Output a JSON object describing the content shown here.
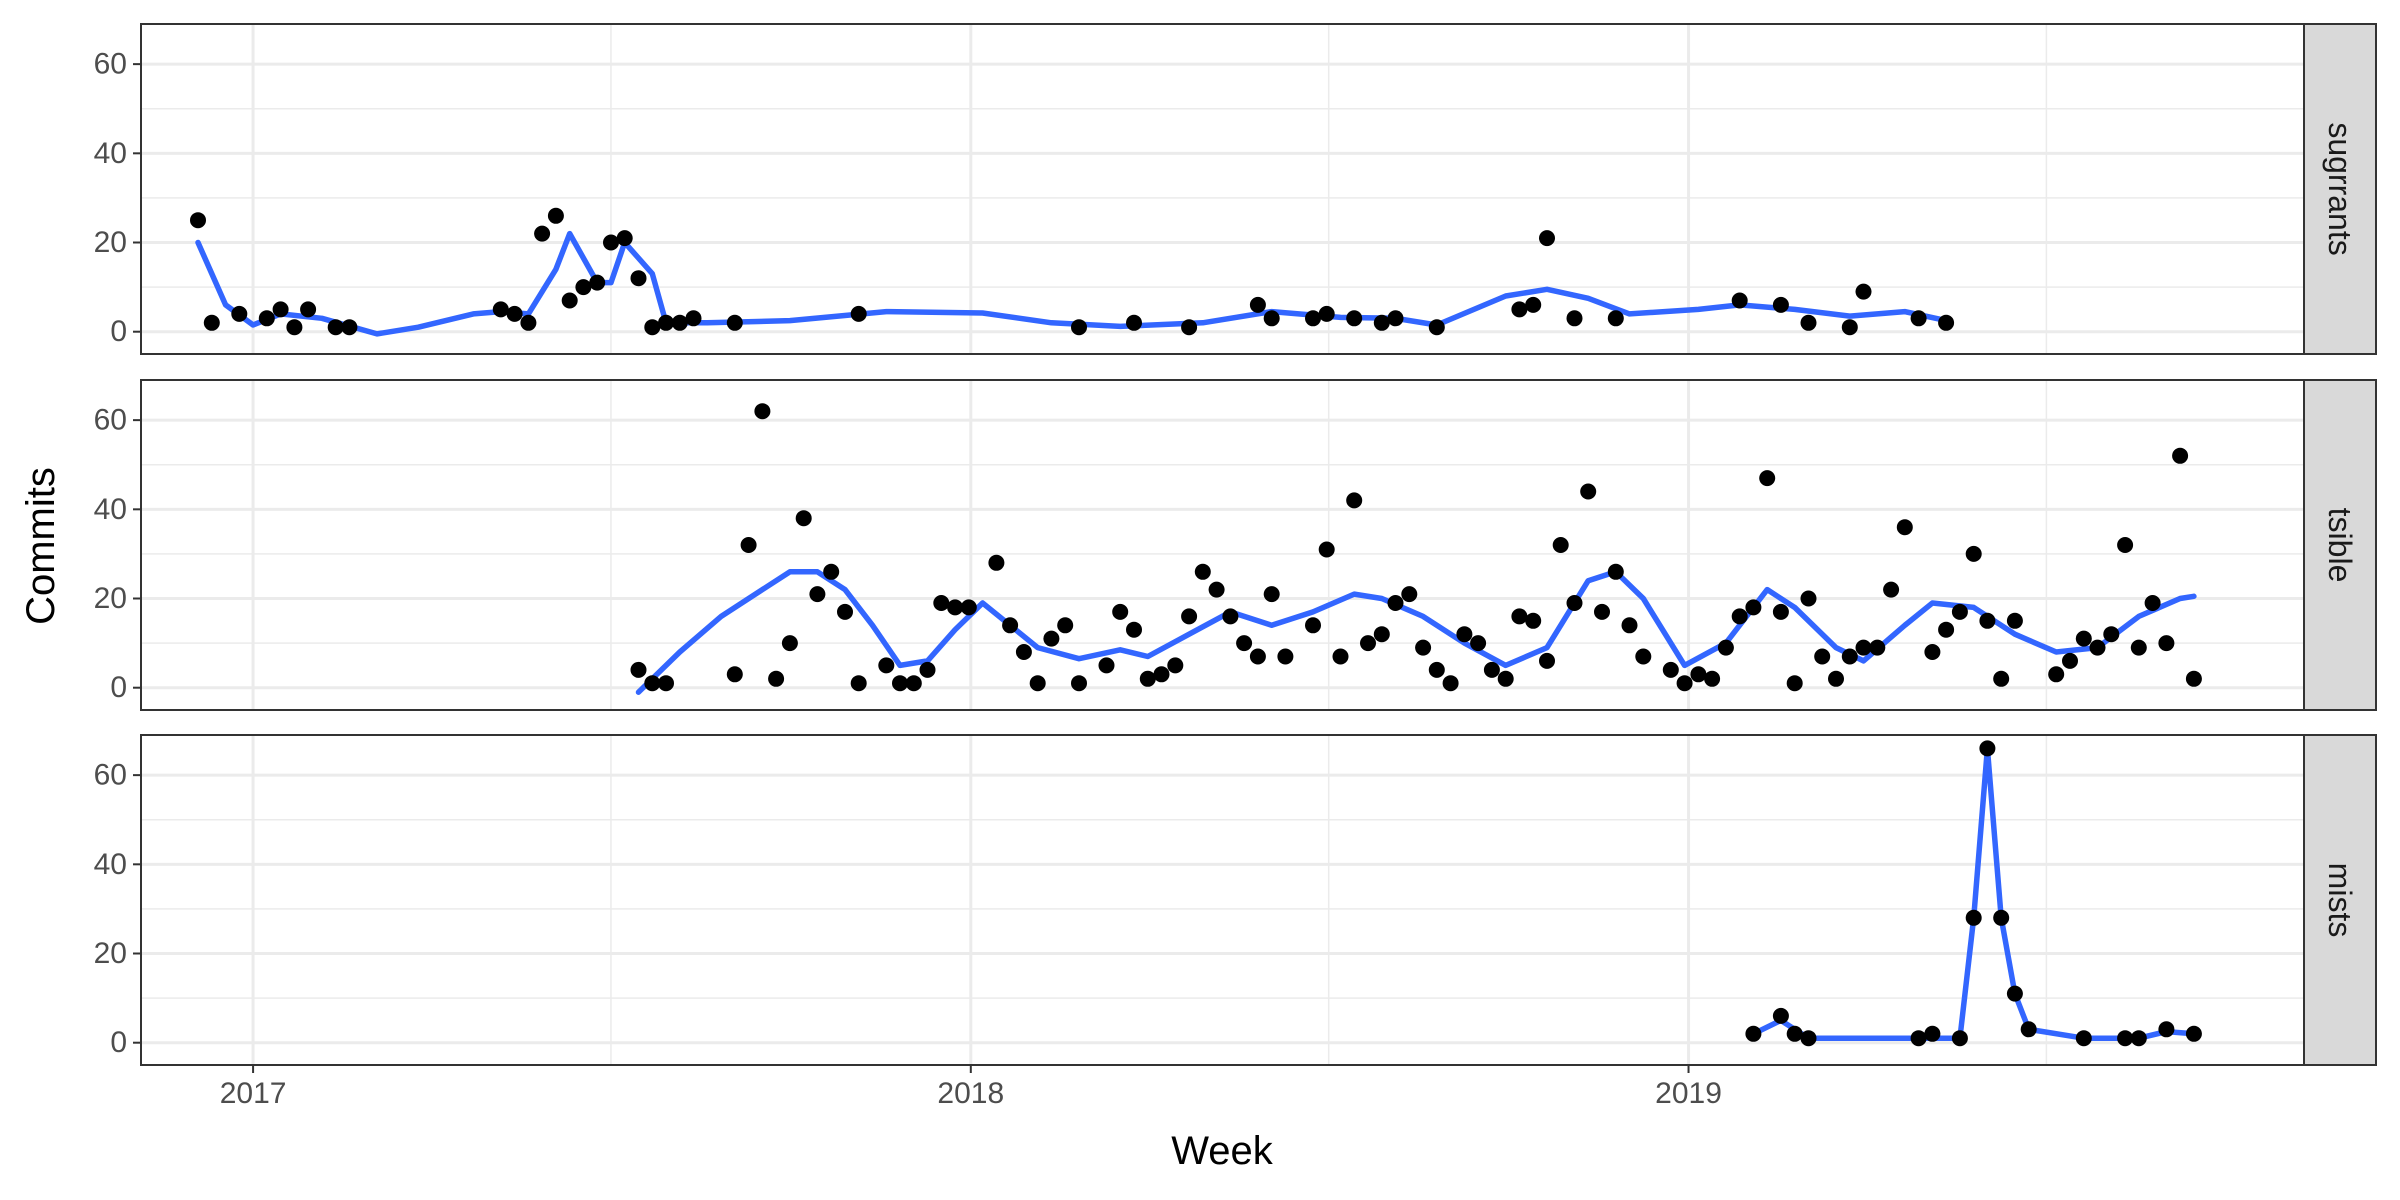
{
  "chart_data": {
    "type": "scatter",
    "title": "",
    "xlabel": "Week",
    "ylabel": "Commits",
    "xlim": [
      "2016-11-05",
      "2019-11-10"
    ],
    "ylim": [
      -5,
      69
    ],
    "x_ticks": [
      "2017",
      "2018",
      "2019"
    ],
    "y_ticks": [
      "0",
      "20",
      "40",
      "60"
    ],
    "grid": true,
    "legend": "none",
    "colors": {
      "points": "#000000",
      "smooth": "#3366ff",
      "strip_fill": "#d9d9d9",
      "grid": "#ebebeb",
      "panel_border": "#333333"
    },
    "panels": [
      {
        "name": "sugrrants",
        "points": [
          [
            "2016-12-04",
            25
          ],
          [
            "2016-12-11",
            2
          ],
          [
            "2016-12-25",
            4
          ],
          [
            "2017-01-08",
            3
          ],
          [
            "2017-01-15",
            5
          ],
          [
            "2017-01-22",
            1
          ],
          [
            "2017-01-29",
            5
          ],
          [
            "2017-02-12",
            1
          ],
          [
            "2017-02-19",
            1
          ],
          [
            "2017-05-07",
            5
          ],
          [
            "2017-05-14",
            4
          ],
          [
            "2017-05-21",
            2
          ],
          [
            "2017-05-28",
            22
          ],
          [
            "2017-06-04",
            26
          ],
          [
            "2017-06-11",
            7
          ],
          [
            "2017-06-18",
            10
          ],
          [
            "2017-06-25",
            11
          ],
          [
            "2017-07-02",
            20
          ],
          [
            "2017-07-09",
            21
          ],
          [
            "2017-07-16",
            12
          ],
          [
            "2017-07-23",
            1
          ],
          [
            "2017-07-30",
            2
          ],
          [
            "2017-08-06",
            2
          ],
          [
            "2017-08-13",
            3
          ],
          [
            "2017-09-03",
            2
          ],
          [
            "2017-11-05",
            4
          ],
          [
            "2018-02-25",
            1
          ],
          [
            "2018-03-25",
            2
          ],
          [
            "2018-04-22",
            1
          ],
          [
            "2018-05-27",
            6
          ],
          [
            "2018-06-03",
            3
          ],
          [
            "2018-06-24",
            3
          ],
          [
            "2018-07-01",
            4
          ],
          [
            "2018-07-15",
            3
          ],
          [
            "2018-07-29",
            2
          ],
          [
            "2018-08-05",
            3
          ],
          [
            "2018-08-26",
            1
          ],
          [
            "2018-10-07",
            5
          ],
          [
            "2018-10-14",
            6
          ],
          [
            "2018-10-21",
            21
          ],
          [
            "2018-11-04",
            3
          ],
          [
            "2018-11-25",
            3
          ],
          [
            "2019-01-27",
            7
          ],
          [
            "2019-02-17",
            6
          ],
          [
            "2019-03-03",
            2
          ],
          [
            "2019-03-24",
            1
          ],
          [
            "2019-03-31",
            9
          ],
          [
            "2019-04-28",
            3
          ],
          [
            "2019-05-12",
            2
          ]
        ],
        "smooth": [
          [
            "2016-12-04",
            20
          ],
          [
            "2016-12-18",
            6
          ],
          [
            "2017-01-01",
            1.5
          ],
          [
            "2017-01-15",
            4
          ],
          [
            "2017-02-05",
            3
          ],
          [
            "2017-03-05",
            -0.5
          ],
          [
            "2017-03-26",
            1
          ],
          [
            "2017-04-23",
            4
          ],
          [
            "2017-05-07",
            4.5
          ],
          [
            "2017-05-21",
            4
          ],
          [
            "2017-06-04",
            14
          ],
          [
            "2017-06-11",
            22
          ],
          [
            "2017-06-25",
            11
          ],
          [
            "2017-07-02",
            11
          ],
          [
            "2017-07-09",
            20
          ],
          [
            "2017-07-23",
            13
          ],
          [
            "2017-07-30",
            2
          ],
          [
            "2017-08-20",
            2
          ],
          [
            "2017-10-01",
            2.5
          ],
          [
            "2017-11-19",
            4.5
          ],
          [
            "2018-01-07",
            4.2
          ],
          [
            "2018-02-11",
            2
          ],
          [
            "2018-03-18",
            1.2
          ],
          [
            "2018-04-29",
            2
          ],
          [
            "2018-06-03",
            4.5
          ],
          [
            "2018-07-08",
            3.2
          ],
          [
            "2018-08-05",
            3
          ],
          [
            "2018-08-26",
            1.5
          ],
          [
            "2018-09-30",
            8
          ],
          [
            "2018-10-21",
            9.5
          ],
          [
            "2018-11-11",
            7.5
          ],
          [
            "2018-12-02",
            4
          ],
          [
            "2019-01-06",
            5
          ],
          [
            "2019-01-27",
            6
          ],
          [
            "2019-02-24",
            5
          ],
          [
            "2019-03-24",
            3.5
          ],
          [
            "2019-04-21",
            4.5
          ],
          [
            "2019-05-12",
            2.5
          ]
        ]
      },
      {
        "name": "tsible",
        "points": [
          [
            "2017-07-16",
            4
          ],
          [
            "2017-07-23",
            1
          ],
          [
            "2017-07-30",
            1
          ],
          [
            "2017-09-03",
            3
          ],
          [
            "2017-09-10",
            32
          ],
          [
            "2017-09-17",
            62
          ],
          [
            "2017-09-24",
            2
          ],
          [
            "2017-10-01",
            10
          ],
          [
            "2017-10-08",
            38
          ],
          [
            "2017-10-15",
            21
          ],
          [
            "2017-10-22",
            26
          ],
          [
            "2017-10-29",
            17
          ],
          [
            "2017-11-05",
            1
          ],
          [
            "2017-11-19",
            5
          ],
          [
            "2017-11-26",
            1
          ],
          [
            "2017-12-03",
            1
          ],
          [
            "2017-12-10",
            4
          ],
          [
            "2017-12-17",
            19
          ],
          [
            "2017-12-24",
            18
          ],
          [
            "2017-12-31",
            18
          ],
          [
            "2018-01-14",
            28
          ],
          [
            "2018-01-21",
            14
          ],
          [
            "2018-01-28",
            8
          ],
          [
            "2018-02-04",
            1
          ],
          [
            "2018-02-11",
            11
          ],
          [
            "2018-02-18",
            14
          ],
          [
            "2018-02-25",
            1
          ],
          [
            "2018-03-11",
            5
          ],
          [
            "2018-03-18",
            17
          ],
          [
            "2018-03-25",
            13
          ],
          [
            "2018-04-01",
            2
          ],
          [
            "2018-04-08",
            3
          ],
          [
            "2018-04-15",
            5
          ],
          [
            "2018-04-22",
            16
          ],
          [
            "2018-04-29",
            26
          ],
          [
            "2018-05-06",
            22
          ],
          [
            "2018-05-13",
            16
          ],
          [
            "2018-05-20",
            10
          ],
          [
            "2018-05-27",
            7
          ],
          [
            "2018-06-03",
            21
          ],
          [
            "2018-06-10",
            7
          ],
          [
            "2018-06-24",
            14
          ],
          [
            "2018-07-01",
            31
          ],
          [
            "2018-07-08",
            7
          ],
          [
            "2018-07-15",
            42
          ],
          [
            "2018-07-22",
            10
          ],
          [
            "2018-07-29",
            12
          ],
          [
            "2018-08-05",
            19
          ],
          [
            "2018-08-12",
            21
          ],
          [
            "2018-08-19",
            9
          ],
          [
            "2018-08-26",
            4
          ],
          [
            "2018-09-02",
            1
          ],
          [
            "2018-09-09",
            12
          ],
          [
            "2018-09-16",
            10
          ],
          [
            "2018-09-23",
            4
          ],
          [
            "2018-09-30",
            2
          ],
          [
            "2018-10-07",
            16
          ],
          [
            "2018-10-14",
            15
          ],
          [
            "2018-10-21",
            6
          ],
          [
            "2018-10-28",
            32
          ],
          [
            "2018-11-04",
            19
          ],
          [
            "2018-11-11",
            44
          ],
          [
            "2018-11-18",
            17
          ],
          [
            "2018-11-25",
            26
          ],
          [
            "2018-12-02",
            14
          ],
          [
            "2018-12-09",
            7
          ],
          [
            "2018-12-23",
            4
          ],
          [
            "2018-12-30",
            1
          ],
          [
            "2019-01-06",
            3
          ],
          [
            "2019-01-13",
            2
          ],
          [
            "2019-01-20",
            9
          ],
          [
            "2019-01-27",
            16
          ],
          [
            "2019-02-03",
            18
          ],
          [
            "2019-02-10",
            47
          ],
          [
            "2019-02-17",
            17
          ],
          [
            "2019-02-24",
            1
          ],
          [
            "2019-03-03",
            20
          ],
          [
            "2019-03-10",
            7
          ],
          [
            "2019-03-17",
            2
          ],
          [
            "2019-03-24",
            7
          ],
          [
            "2019-03-31",
            9
          ],
          [
            "2019-04-07",
            9
          ],
          [
            "2019-04-14",
            22
          ],
          [
            "2019-04-21",
            36
          ],
          [
            "2019-05-05",
            8
          ],
          [
            "2019-05-12",
            13
          ],
          [
            "2019-05-19",
            17
          ],
          [
            "2019-05-26",
            30
          ],
          [
            "2019-06-02",
            15
          ],
          [
            "2019-06-09",
            2
          ],
          [
            "2019-06-16",
            15
          ],
          [
            "2019-07-07",
            3
          ],
          [
            "2019-07-14",
            6
          ],
          [
            "2019-07-21",
            11
          ],
          [
            "2019-07-28",
            9
          ],
          [
            "2019-08-04",
            12
          ],
          [
            "2019-08-11",
            32
          ],
          [
            "2019-08-18",
            9
          ],
          [
            "2019-08-25",
            19
          ],
          [
            "2019-09-01",
            10
          ],
          [
            "2019-09-08",
            52
          ],
          [
            "2019-09-15",
            2
          ]
        ],
        "smooth": [
          [
            "2017-07-16",
            -1
          ],
          [
            "2017-08-06",
            8
          ],
          [
            "2017-08-27",
            16
          ],
          [
            "2017-09-17",
            22
          ],
          [
            "2017-10-01",
            26
          ],
          [
            "2017-10-15",
            26
          ],
          [
            "2017-10-29",
            22
          ],
          [
            "2017-11-12",
            14
          ],
          [
            "2017-11-26",
            5
          ],
          [
            "2017-12-10",
            6
          ],
          [
            "2017-12-24",
            13
          ],
          [
            "2018-01-07",
            19
          ],
          [
            "2018-01-21",
            14
          ],
          [
            "2018-02-04",
            9
          ],
          [
            "2018-02-25",
            6.5
          ],
          [
            "2018-03-18",
            8.5
          ],
          [
            "2018-04-01",
            7
          ],
          [
            "2018-04-22",
            12
          ],
          [
            "2018-05-13",
            17
          ],
          [
            "2018-06-03",
            14
          ],
          [
            "2018-06-24",
            17
          ],
          [
            "2018-07-15",
            21
          ],
          [
            "2018-07-29",
            20
          ],
          [
            "2018-08-19",
            16
          ],
          [
            "2018-09-09",
            10
          ],
          [
            "2018-09-30",
            5
          ],
          [
            "2018-10-21",
            9
          ],
          [
            "2018-11-11",
            24
          ],
          [
            "2018-11-25",
            26
          ],
          [
            "2018-12-09",
            20
          ],
          [
            "2018-12-30",
            5
          ],
          [
            "2019-01-20",
            10
          ],
          [
            "2019-02-10",
            22
          ],
          [
            "2019-02-24",
            18
          ],
          [
            "2019-03-17",
            9
          ],
          [
            "2019-03-31",
            6
          ],
          [
            "2019-04-21",
            14
          ],
          [
            "2019-05-05",
            19
          ],
          [
            "2019-05-26",
            18
          ],
          [
            "2019-06-16",
            12
          ],
          [
            "2019-07-07",
            8
          ],
          [
            "2019-07-28",
            9
          ],
          [
            "2019-08-18",
            16
          ],
          [
            "2019-09-08",
            20
          ],
          [
            "2019-09-15",
            20.5
          ]
        ]
      },
      {
        "name": "mists",
        "points": [
          [
            "2019-02-03",
            2
          ],
          [
            "2019-02-17",
            6
          ],
          [
            "2019-02-24",
            2
          ],
          [
            "2019-03-03",
            1
          ],
          [
            "2019-04-28",
            1
          ],
          [
            "2019-05-05",
            2
          ],
          [
            "2019-05-19",
            1
          ],
          [
            "2019-05-26",
            28
          ],
          [
            "2019-06-02",
            66
          ],
          [
            "2019-06-09",
            28
          ],
          [
            "2019-06-16",
            11
          ],
          [
            "2019-06-23",
            3
          ],
          [
            "2019-07-21",
            1
          ],
          [
            "2019-08-11",
            1
          ],
          [
            "2019-08-18",
            1
          ],
          [
            "2019-09-01",
            3
          ],
          [
            "2019-09-15",
            2
          ]
        ],
        "smooth": [
          [
            "2019-02-03",
            2
          ],
          [
            "2019-02-17",
            5
          ],
          [
            "2019-03-03",
            1
          ],
          [
            "2019-05-19",
            1
          ],
          [
            "2019-05-26",
            28
          ],
          [
            "2019-06-02",
            66
          ],
          [
            "2019-06-09",
            28
          ],
          [
            "2019-06-16",
            11
          ],
          [
            "2019-06-23",
            3
          ],
          [
            "2019-07-21",
            1
          ],
          [
            "2019-08-18",
            1
          ],
          [
            "2019-09-01",
            2.5
          ],
          [
            "2019-09-15",
            2
          ]
        ]
      }
    ]
  }
}
